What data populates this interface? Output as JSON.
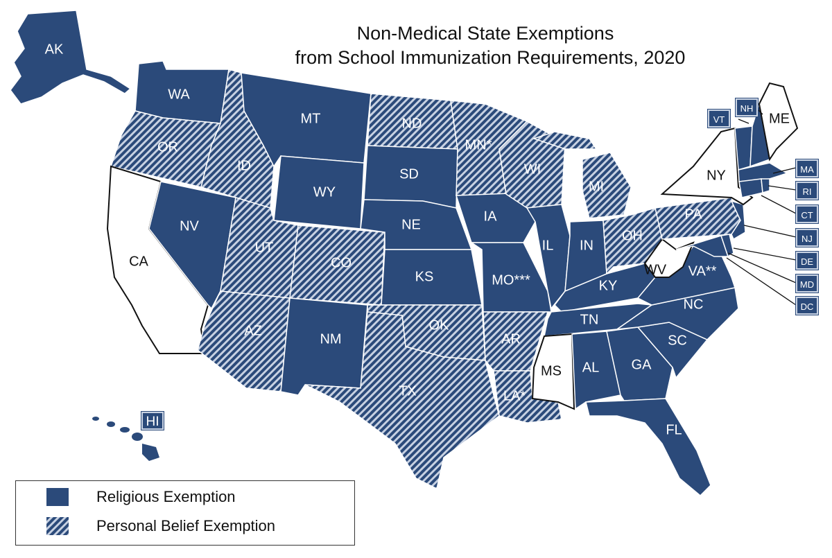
{
  "title": {
    "line1": "Non-Medical State Exemptions",
    "line2": "from School Immunization Requirements, 2020"
  },
  "colors": {
    "religious": "#2b4a7a",
    "personal_stripe_bg": "#c7d1e2",
    "none": "#ffffff",
    "outline": "#ffffff"
  },
  "legend": {
    "religious": "Religious Exemption",
    "personal": "Personal Belief Exemption"
  },
  "labels": {
    "AK": "AK",
    "HI": "HI",
    "WA": "WA",
    "OR": "OR",
    "CA": "CA",
    "NV": "NV",
    "ID": "ID",
    "MT": "MT",
    "WY": "WY",
    "UT": "UT",
    "CO": "CO",
    "AZ": "AZ",
    "NM": "NM",
    "ND": "ND",
    "SD": "SD",
    "NE": "NE",
    "KS": "KS",
    "OK": "OK",
    "TX": "TX",
    "MN": "MN*",
    "IA": "IA",
    "MO": "MO***",
    "AR": "AR",
    "LA": "LA*",
    "WI": "WI",
    "IL": "IL",
    "MI": "MI",
    "IN": "IN",
    "OH": "OH",
    "KY": "KY",
    "TN": "TN",
    "MS": "MS",
    "AL": "AL",
    "GA": "GA",
    "FL": "FL",
    "SC": "SC",
    "NC": "NC",
    "VA": "VA**",
    "WV": "WV",
    "PA": "PA",
    "NY": "NY",
    "ME": "ME",
    "VT": "VT",
    "NH": "NH",
    "MA": "MA",
    "RI": "RI",
    "CT": "CT",
    "NJ": "NJ",
    "DE": "DE",
    "MD": "MD",
    "DC": "DC"
  }
}
